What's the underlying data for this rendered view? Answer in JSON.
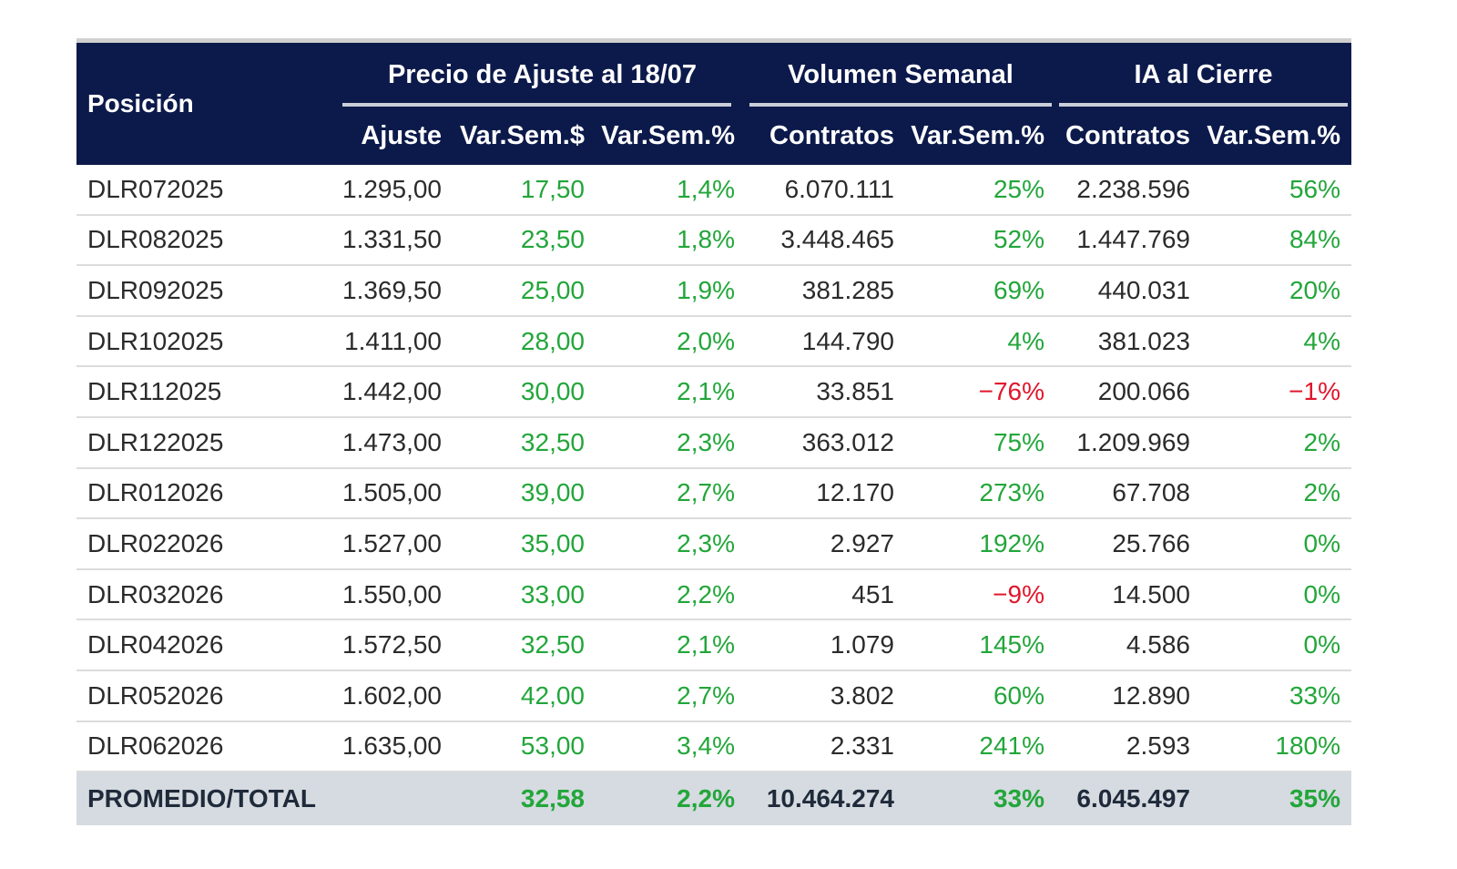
{
  "header": {
    "position_label": "Posición",
    "groups": [
      {
        "label": "Precio de Ajuste al 18/07"
      },
      {
        "label": "Volumen Semanal"
      },
      {
        "label": "IA al Cierre"
      }
    ],
    "subcolumns": [
      "Ajuste",
      "Var.Sem.$",
      "Var.Sem.%",
      "Contratos",
      "Var.Sem.%",
      "Contratos",
      "Var.Sem.%"
    ]
  },
  "rows": [
    {
      "pos": "DLR072025",
      "ajuste": "1.295,00",
      "var_usd": "17,50",
      "var_pct": "1,4%",
      "vol": "6.070.111",
      "vol_var": "25%",
      "ia": "2.238.596",
      "ia_var": "56%"
    },
    {
      "pos": "DLR082025",
      "ajuste": "1.331,50",
      "var_usd": "23,50",
      "var_pct": "1,8%",
      "vol": "3.448.465",
      "vol_var": "52%",
      "ia": "1.447.769",
      "ia_var": "84%"
    },
    {
      "pos": "DLR092025",
      "ajuste": "1.369,50",
      "var_usd": "25,00",
      "var_pct": "1,9%",
      "vol": "381.285",
      "vol_var": "69%",
      "ia": "440.031",
      "ia_var": "20%"
    },
    {
      "pos": "DLR102025",
      "ajuste": "1.411,00",
      "var_usd": "28,00",
      "var_pct": "2,0%",
      "vol": "144.790",
      "vol_var": "4%",
      "ia": "381.023",
      "ia_var": "4%"
    },
    {
      "pos": "DLR112025",
      "ajuste": "1.442,00",
      "var_usd": "30,00",
      "var_pct": "2,1%",
      "vol": "33.851",
      "vol_var": "−76%",
      "ia": "200.066",
      "ia_var": "−1%"
    },
    {
      "pos": "DLR122025",
      "ajuste": "1.473,00",
      "var_usd": "32,50",
      "var_pct": "2,3%",
      "vol": "363.012",
      "vol_var": "75%",
      "ia": "1.209.969",
      "ia_var": "2%"
    },
    {
      "pos": "DLR012026",
      "ajuste": "1.505,00",
      "var_usd": "39,00",
      "var_pct": "2,7%",
      "vol": "12.170",
      "vol_var": "273%",
      "ia": "67.708",
      "ia_var": "2%"
    },
    {
      "pos": "DLR022026",
      "ajuste": "1.527,00",
      "var_usd": "35,00",
      "var_pct": "2,3%",
      "vol": "2.927",
      "vol_var": "192%",
      "ia": "25.766",
      "ia_var": "0%"
    },
    {
      "pos": "DLR032026",
      "ajuste": "1.550,00",
      "var_usd": "33,00",
      "var_pct": "2,2%",
      "vol": "451",
      "vol_var": "−9%",
      "ia": "14.500",
      "ia_var": "0%"
    },
    {
      "pos": "DLR042026",
      "ajuste": "1.572,50",
      "var_usd": "32,50",
      "var_pct": "2,1%",
      "vol": "1.079",
      "vol_var": "145%",
      "ia": "4.586",
      "ia_var": "0%"
    },
    {
      "pos": "DLR052026",
      "ajuste": "1.602,00",
      "var_usd": "42,00",
      "var_pct": "2,7%",
      "vol": "3.802",
      "vol_var": "60%",
      "ia": "12.890",
      "ia_var": "33%"
    },
    {
      "pos": "DLR062026",
      "ajuste": "1.635,00",
      "var_usd": "53,00",
      "var_pct": "3,4%",
      "vol": "2.331",
      "vol_var": "241%",
      "ia": "2.593",
      "ia_var": "180%"
    }
  ],
  "total": {
    "pos": "PROMEDIO/TOTAL",
    "ajuste": "",
    "var_usd": "32,58",
    "var_pct": "2,2%",
    "vol": "10.464.274",
    "vol_var": "33%",
    "ia": "6.045.497",
    "ia_var": "35%"
  },
  "colors": {
    "header_bg": "#0c1a4b",
    "positive": "#22a63a",
    "negative": "#e0162b",
    "total_bg": "#d5dbe0"
  }
}
